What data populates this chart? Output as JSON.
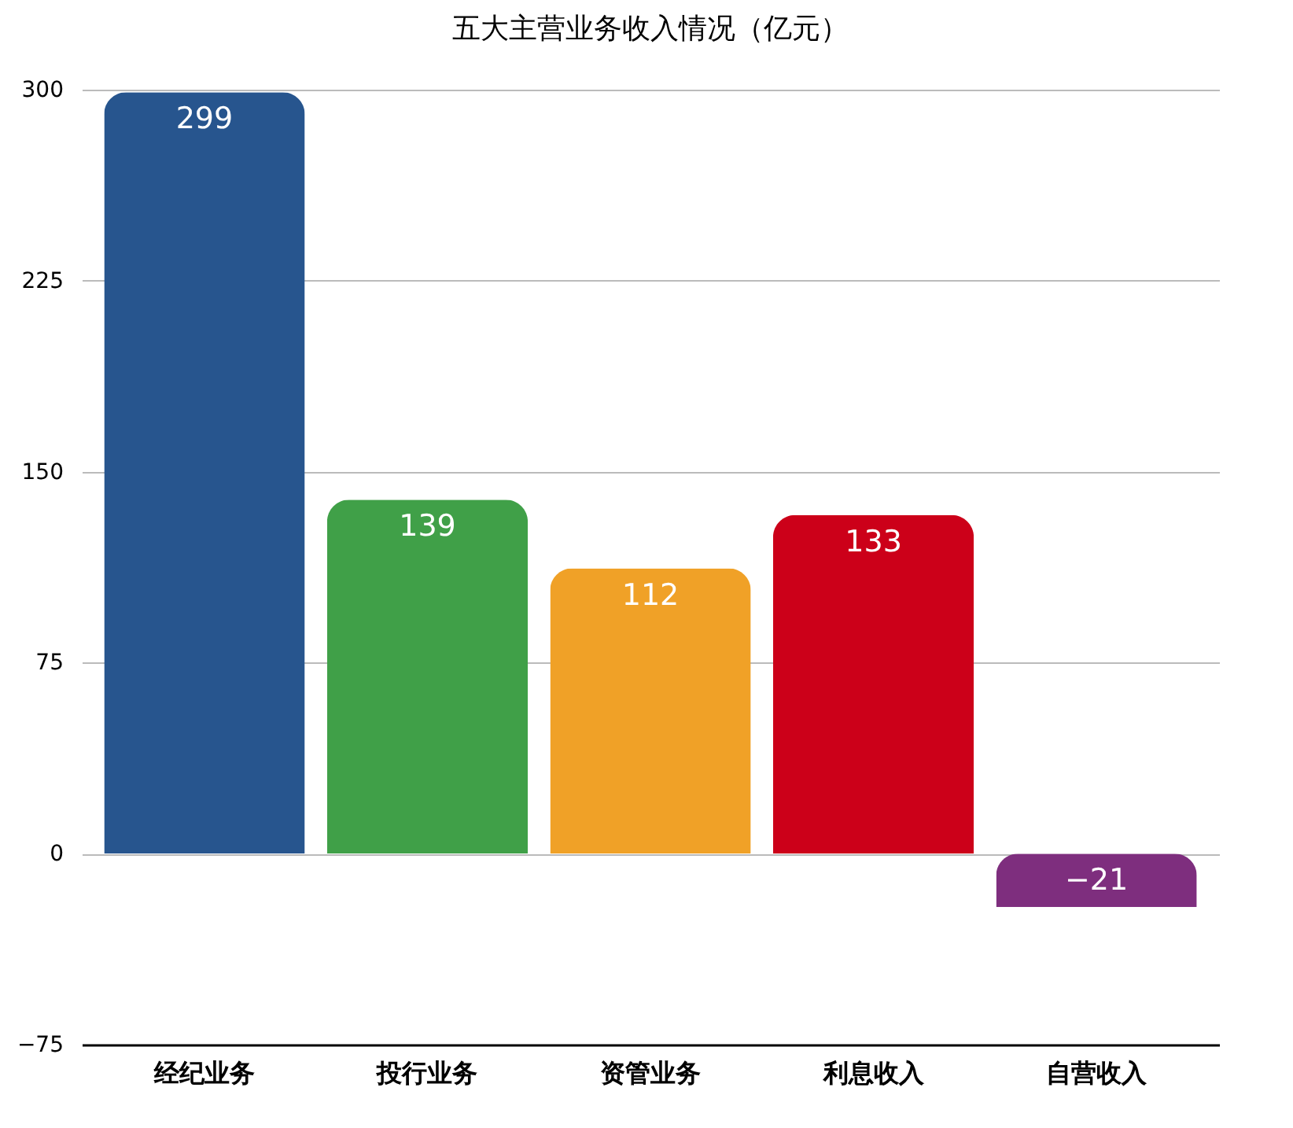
{
  "chart_data": {
    "type": "bar",
    "title": "五大主营业务收入情况（亿元）",
    "categories": [
      "经纪业务",
      "投行业务",
      "资管业务",
      "利息收入",
      "自营收入"
    ],
    "values": [
      299,
      139,
      112,
      133,
      -21
    ],
    "colors": [
      "#27558e",
      "#40a048",
      "#f0a127",
      "#cc0019",
      "#7e2e7e"
    ],
    "ylim": [
      -75,
      300
    ],
    "yticks": [
      -75,
      0,
      75,
      150,
      225,
      300
    ],
    "grid": "y",
    "data_labels": true
  }
}
